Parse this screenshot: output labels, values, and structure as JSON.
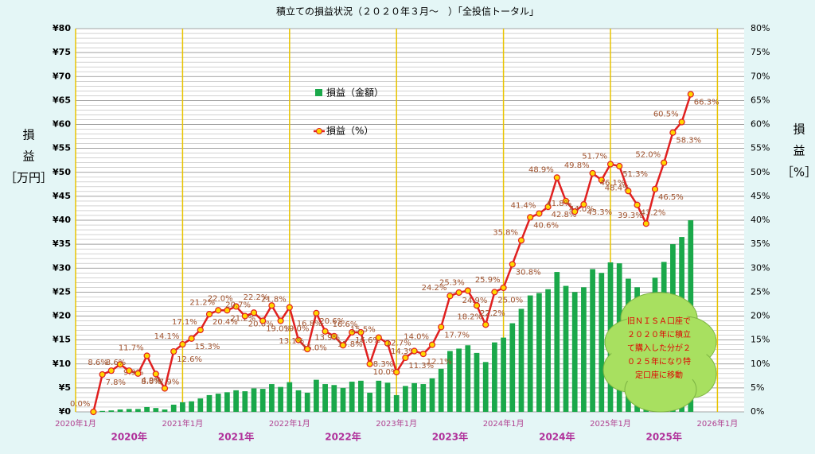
{
  "chart_data": {
    "type": "bar_line",
    "title": "積立ての損益状況（２０２０年３月～　）「全投信トータル」",
    "y_axis_label": [
      "損",
      "益",
      "［万円］"
    ],
    "y2_axis_label": [
      "損",
      "益",
      "［%］"
    ],
    "x": [
      2,
      3,
      4,
      5,
      6,
      7,
      8,
      9,
      10,
      11,
      12,
      13,
      14,
      15,
      16,
      17,
      18,
      19,
      20,
      21,
      22,
      23,
      24,
      25,
      26,
      27,
      28,
      29,
      30,
      31,
      32,
      33,
      34,
      35,
      36,
      37,
      38,
      39,
      40,
      41,
      42,
      43,
      44,
      45,
      46,
      47,
      48,
      49,
      50,
      51,
      52,
      53,
      54,
      55,
      56,
      57,
      58,
      59,
      60,
      61,
      62,
      63,
      64,
      65,
      66,
      67,
      68,
      69
    ],
    "xlim": [
      0,
      75
    ],
    "xticks": [
      {
        "value": 0,
        "label": "2020年1月"
      },
      {
        "value": 12,
        "label": "2021年1月"
      },
      {
        "value": 24,
        "label": "2022年1月"
      },
      {
        "value": 36,
        "label": "2023年1月"
      },
      {
        "value": 48,
        "label": "2024年1月"
      },
      {
        "value": 60,
        "label": "2025年1月"
      },
      {
        "value": 72,
        "label": "2026年1月"
      }
    ],
    "year_labels": [
      {
        "value": 6,
        "label": "2020年"
      },
      {
        "value": 18,
        "label": "2021年"
      },
      {
        "value": 30,
        "label": "2022年"
      },
      {
        "value": 42,
        "label": "2023年"
      },
      {
        "value": 54,
        "label": "2024年"
      },
      {
        "value": 66,
        "label": "2025年"
      }
    ],
    "ylim": [
      0,
      80
    ],
    "yticks": [
      {
        "value": 0,
        "label": "¥0"
      },
      {
        "value": 5,
        "label": "¥5"
      },
      {
        "value": 10,
        "label": "¥10"
      },
      {
        "value": 15,
        "label": "¥15"
      },
      {
        "value": 20,
        "label": "¥20"
      },
      {
        "value": 25,
        "label": "¥25"
      },
      {
        "value": 30,
        "label": "¥30"
      },
      {
        "value": 35,
        "label": "¥35"
      },
      {
        "value": 40,
        "label": "¥40"
      },
      {
        "value": 45,
        "label": "¥45"
      },
      {
        "value": 50,
        "label": "¥50"
      },
      {
        "value": 55,
        "label": "¥55"
      },
      {
        "value": 60,
        "label": "¥60"
      },
      {
        "value": 65,
        "label": "¥65"
      },
      {
        "value": 70,
        "label": "¥70"
      },
      {
        "value": 75,
        "label": "¥75"
      },
      {
        "value": 80,
        "label": "¥80"
      }
    ],
    "y2lim": [
      0,
      80
    ],
    "y2ticks": [
      {
        "value": 0,
        "label": "0%"
      },
      {
        "value": 5,
        "label": "5%"
      },
      {
        "value": 10,
        "label": "10%"
      },
      {
        "value": 15,
        "label": "15%"
      },
      {
        "value": 20,
        "label": "20%"
      },
      {
        "value": 25,
        "label": "25%"
      },
      {
        "value": 30,
        "label": "30%"
      },
      {
        "value": 35,
        "label": "35%"
      },
      {
        "value": 40,
        "label": "40%"
      },
      {
        "value": 45,
        "label": "45%"
      },
      {
        "value": 50,
        "label": "50%"
      },
      {
        "value": 55,
        "label": "55%"
      },
      {
        "value": 60,
        "label": "60%"
      },
      {
        "value": 65,
        "label": "65%"
      },
      {
        "value": 70,
        "label": "70%"
      },
      {
        "value": 75,
        "label": "75%"
      },
      {
        "value": 80,
        "label": "80%"
      }
    ],
    "grid": true,
    "series": [
      {
        "name": "損益（金額）",
        "type": "bar",
        "color": "#1aa84a",
        "values": [
          0,
          0.2,
          0.3,
          0.5,
          0.6,
          0.6,
          1,
          0.8,
          0.5,
          1.5,
          2,
          2.2,
          2.8,
          3.5,
          3.8,
          4.1,
          4.5,
          4.3,
          4.9,
          4.8,
          5.8,
          5.2,
          6.2,
          4.5,
          4,
          6.7,
          5.8,
          5.6,
          5,
          6.3,
          6.5,
          4,
          6.5,
          6.1,
          3.5,
          5.4,
          6,
          5.8,
          7,
          9,
          12.7,
          13.2,
          13.9,
          12.3,
          10.4,
          14.5,
          15.5,
          18.5,
          21.5,
          24.3,
          24.8,
          25.6,
          29.2,
          26.3,
          25,
          26,
          29.8,
          29,
          31.2,
          31,
          27.8,
          26,
          24,
          28,
          31.3,
          35,
          36.5,
          40
        ]
      },
      {
        "name": "損益（%）",
        "type": "line",
        "axis": "y2",
        "color": "#e02020",
        "marker_color": "#ffd700",
        "label_color": "#a0522d",
        "values": [
          0,
          7.8,
          8.6,
          9.9,
          8.6,
          8.0,
          11.7,
          7.9,
          4.9,
          12.6,
          14.1,
          15.3,
          17.1,
          20.4,
          21.2,
          21.2,
          22.0,
          20.0,
          20.7,
          19.0,
          22.2,
          19.0,
          21.8,
          15.0,
          13.1,
          20.6,
          16.8,
          15.8,
          13.9,
          16.6,
          16.6,
          10.0,
          15.5,
          14.3,
          8.3,
          11.3,
          12.7,
          12.1,
          14.0,
          17.7,
          24.2,
          24.9,
          25.3,
          22.2,
          18.2,
          25.0,
          25.9,
          30.8,
          35.8,
          40.6,
          41.4,
          42.8,
          48.9,
          44.0,
          41.8,
          43.3,
          49.8,
          48.4,
          51.7,
          51.3,
          46.1,
          43.2,
          39.3,
          46.5,
          52.0,
          58.3,
          60.5,
          66.3
        ],
        "value_labels": [
          "0.0%",
          "7.8%",
          "8.6%",
          "9.9%",
          "8.6%",
          "8.0%",
          "11.7%",
          "7.9%",
          "4.9%",
          "12.6%",
          "14.1%",
          "15.3%",
          "17.1%",
          "20.4%",
          "21.2%",
          "21.2%",
          "22.0%",
          "20.0%",
          "20.7%",
          "19.0%",
          "22.2%",
          "19.0%",
          "21.8%",
          "15.0%",
          "13.1%",
          "20.6%",
          "16.8%",
          "15.8%",
          "13.9%",
          "16.6%",
          "16.6%",
          "10.0%",
          "15.5%",
          "14.3%",
          "8.3%",
          "11.3%",
          "12.7%",
          "12.1%",
          "14.0%",
          "17.7%",
          "24.2%",
          "24.9%",
          "25.3%",
          "22.2%",
          "18.2%",
          "25.0%",
          "25.9%",
          "30.8%",
          "35.8%",
          "40.6%",
          "41.4%",
          "42.8%",
          "48.9%",
          "44.0%",
          "41.8%",
          "43.3%",
          "49.8%",
          "48.4%",
          "51.7%",
          "51.3%",
          "46.1%",
          "43.2%",
          "39.3%",
          "46.5%",
          "52.0%",
          "58.3%",
          "60.5%",
          "66.3%"
        ]
      }
    ],
    "annotation": [
      "旧ＮＩＳＡ口座で",
      "２０２０年に積立",
      "て購入した分が２",
      "０２５年になり特",
      "定口座に移動"
    ]
  }
}
